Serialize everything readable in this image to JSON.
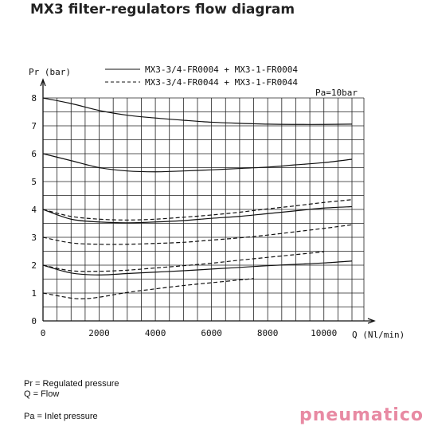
{
  "page": {
    "title": "MX3 filter-regulators flow diagram"
  },
  "chart_data": {
    "type": "line",
    "ylabel": "Pr (bar)",
    "xlabel": "Q (Nl/min)",
    "xlim": [
      0,
      11000
    ],
    "ylim": [
      0,
      8
    ],
    "x_ticks": [
      "0",
      "2000",
      "4000",
      "6000",
      "8000",
      "10000"
    ],
    "y_ticks": [
      "0",
      "1",
      "2",
      "3",
      "4",
      "5",
      "6",
      "7",
      "8"
    ],
    "grid": true,
    "annotation": "Pa=10bar",
    "legend": [
      {
        "label": "MX3-3/4-FR0004 + MX3-1-FR0004",
        "style": "solid"
      },
      {
        "label": "MX3-3/4-FR0044 + MX3-1-FR0044",
        "style": "dashed"
      }
    ],
    "series": [
      {
        "style": "solid",
        "x": [
          0,
          1000,
          2000,
          3000,
          4000,
          5000,
          6000,
          7000,
          8000,
          9000,
          10000,
          11000
        ],
        "y": [
          8.0,
          7.8,
          7.55,
          7.38,
          7.28,
          7.2,
          7.13,
          7.09,
          7.06,
          7.05,
          7.05,
          7.06
        ]
      },
      {
        "style": "solid",
        "x": [
          0,
          1000,
          2000,
          3000,
          4000,
          5000,
          6000,
          7000,
          8000,
          9000,
          10000,
          11000
        ],
        "y": [
          6.0,
          5.75,
          5.5,
          5.38,
          5.35,
          5.38,
          5.42,
          5.47,
          5.52,
          5.6,
          5.68,
          5.8
        ]
      },
      {
        "style": "solid",
        "x": [
          0,
          1000,
          2000,
          3000,
          4000,
          5000,
          6000,
          7000,
          8000,
          9000,
          10000,
          11000
        ],
        "y": [
          4.0,
          3.65,
          3.55,
          3.52,
          3.55,
          3.6,
          3.68,
          3.75,
          3.85,
          3.95,
          4.05,
          4.1
        ]
      },
      {
        "style": "solid",
        "x": [
          0,
          1000,
          2000,
          3000,
          4000,
          5000,
          6000,
          7000,
          8000,
          9000,
          10000,
          11000
        ],
        "y": [
          2.0,
          1.72,
          1.65,
          1.7,
          1.75,
          1.8,
          1.86,
          1.92,
          1.98,
          2.03,
          2.08,
          2.15
        ]
      },
      {
        "style": "dashed",
        "x": [
          0,
          1000,
          2000,
          3000,
          4000,
          5000,
          6000,
          7000,
          8000,
          9000,
          10000,
          11000
        ],
        "y": [
          4.0,
          3.75,
          3.65,
          3.62,
          3.65,
          3.72,
          3.8,
          3.9,
          4.02,
          4.13,
          4.25,
          4.35
        ]
      },
      {
        "style": "dashed",
        "x": [
          0,
          1000,
          2000,
          3000,
          4000,
          5000,
          6000,
          7000,
          8000,
          9000,
          10000,
          11000
        ],
        "y": [
          3.0,
          2.8,
          2.75,
          2.75,
          2.78,
          2.82,
          2.9,
          2.98,
          3.08,
          3.2,
          3.32,
          3.45
        ]
      },
      {
        "style": "dashed",
        "x": [
          0,
          1000,
          2000,
          3000,
          4000,
          5000,
          6000,
          7000,
          8000,
          9000,
          10000
        ],
        "y": [
          2.0,
          1.8,
          1.78,
          1.82,
          1.9,
          1.98,
          2.07,
          2.18,
          2.28,
          2.38,
          2.48
        ]
      },
      {
        "style": "dashed",
        "x": [
          0,
          1000,
          1500,
          2000,
          3000,
          4000,
          5000,
          6000,
          7000,
          7500
        ],
        "y": [
          1.0,
          0.82,
          0.8,
          0.85,
          1.02,
          1.15,
          1.27,
          1.37,
          1.47,
          1.52
        ]
      }
    ]
  },
  "notes": {
    "pr": "Pr = Regulated pressure",
    "q": "Q = Flow",
    "pa": "Pa = Inlet pressure"
  },
  "logo": {
    "text": "pneumatico"
  }
}
